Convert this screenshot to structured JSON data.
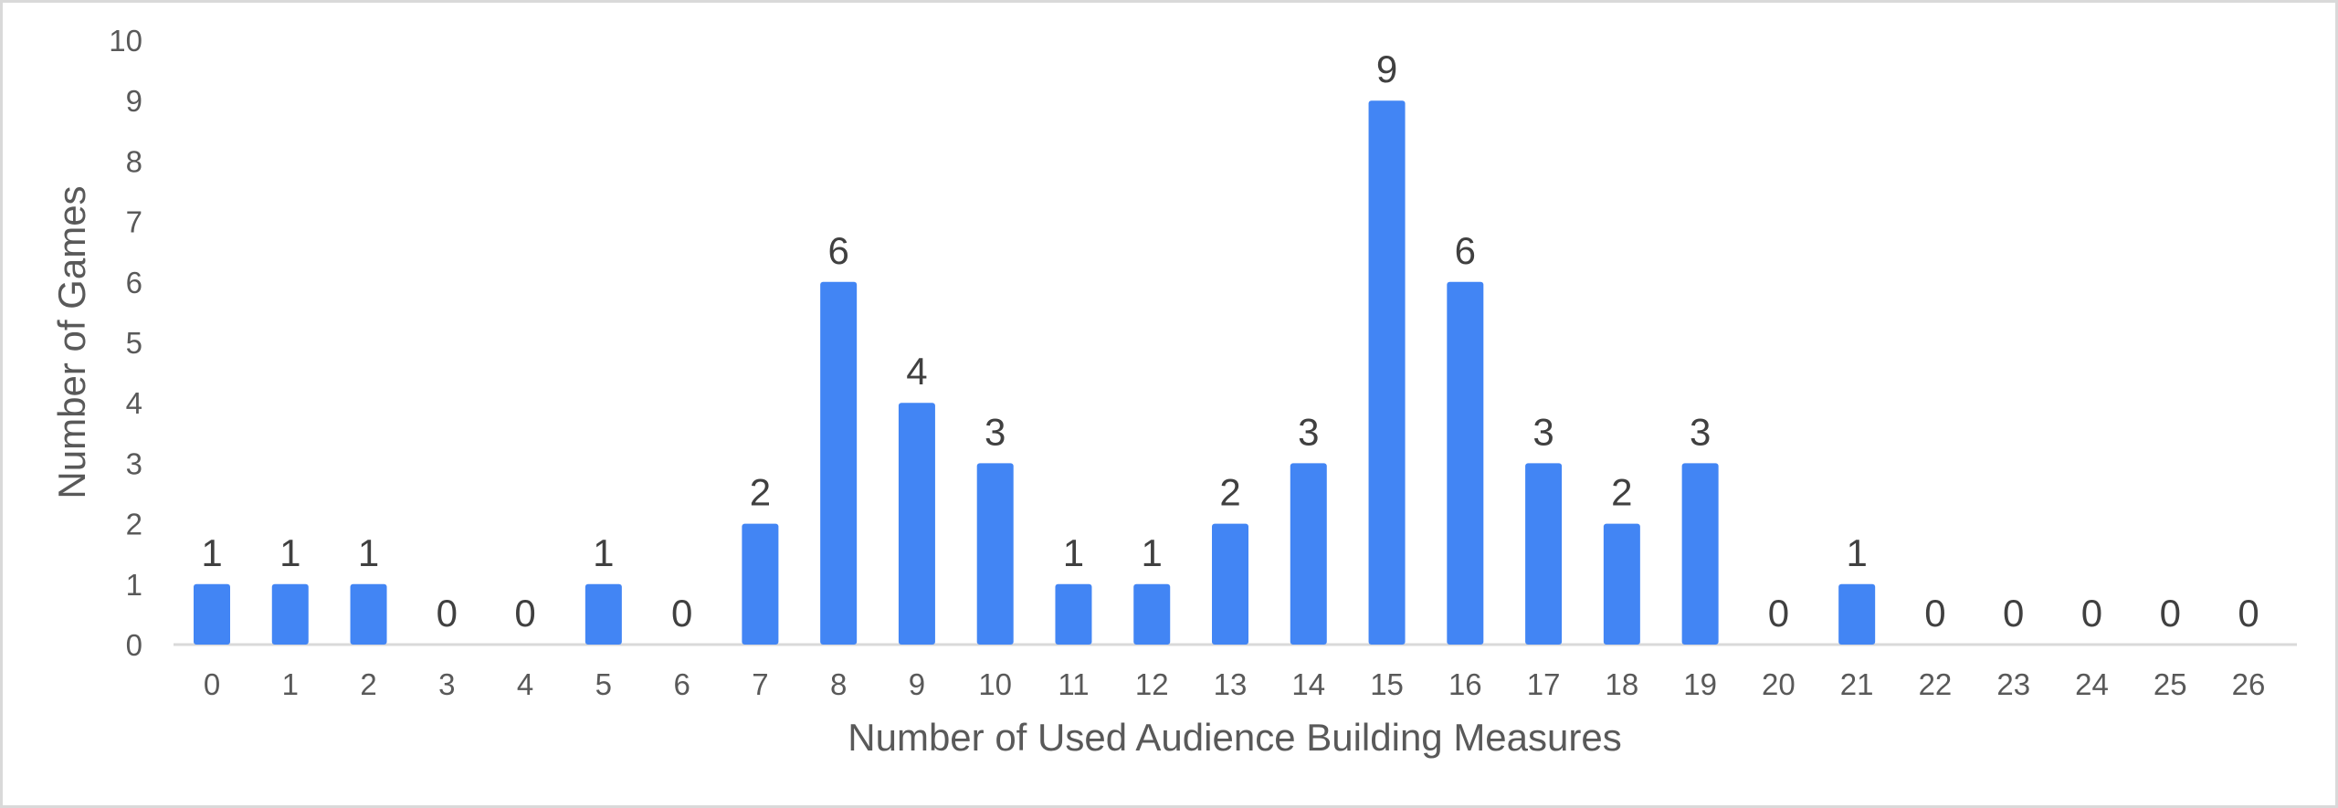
{
  "chart_data": {
    "type": "bar",
    "title": "",
    "xlabel": "Number of Used Audience Building Measures",
    "ylabel": "Number of Games",
    "categories": [
      "0",
      "1",
      "2",
      "3",
      "4",
      "5",
      "6",
      "7",
      "8",
      "9",
      "10",
      "11",
      "12",
      "13",
      "14",
      "15",
      "16",
      "17",
      "18",
      "19",
      "20",
      "21",
      "22",
      "23",
      "24",
      "25",
      "26"
    ],
    "values": [
      1,
      1,
      1,
      0,
      0,
      1,
      0,
      2,
      6,
      4,
      3,
      1,
      1,
      2,
      3,
      9,
      6,
      3,
      2,
      3,
      0,
      1,
      0,
      0,
      0,
      0,
      0
    ],
    "ylim": [
      0,
      10
    ],
    "yticks": [
      "0",
      "1",
      "2",
      "3",
      "4",
      "5",
      "6",
      "7",
      "8",
      "9",
      "10"
    ],
    "bar_color": "#4285f4",
    "axis_color": "#d9d9d9",
    "grid": false,
    "legend": "none",
    "data_labels": true
  }
}
